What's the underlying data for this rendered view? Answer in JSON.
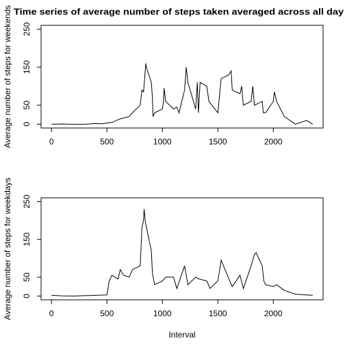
{
  "chart_data": [
    {
      "type": "line",
      "title": "Time series of average number of steps taken averaged across all day",
      "y_label": "Average number of steps for weekends",
      "x": [
        0,
        100,
        200,
        300,
        400,
        450,
        500,
        550,
        600,
        630,
        700,
        730,
        800,
        815,
        830,
        845,
        850,
        855,
        900,
        910,
        915,
        930,
        1000,
        1010,
        1015,
        1030,
        1100,
        1130,
        1150,
        1200,
        1210,
        1215,
        1230,
        1300,
        1315,
        1325,
        1340,
        1400,
        1420,
        1500,
        1510,
        1530,
        1600,
        1620,
        1630,
        1700,
        1715,
        1730,
        1800,
        1815,
        1830,
        1900,
        1910,
        1930,
        2000,
        2010,
        2030,
        2100,
        2150,
        2200,
        2300,
        2330,
        2355
      ],
      "series": [
        {
          "color": "#000000",
          "values": [
            0,
            0.5,
            0,
            0,
            2,
            1,
            3,
            5,
            12,
            15,
            20,
            30,
            50,
            90,
            85,
            140,
            160,
            150,
            110,
            70,
            20,
            30,
            40,
            60,
            95,
            60,
            40,
            45,
            30,
            90,
            130,
            150,
            110,
            40,
            110,
            30,
            110,
            100,
            60,
            30,
            60,
            120,
            130,
            140,
            90,
            80,
            100,
            50,
            60,
            100,
            50,
            60,
            30,
            30,
            60,
            85,
            60,
            20,
            10,
            0,
            10,
            5,
            0
          ]
        }
      ],
      "xlim": [
        -94.2,
        2449.2
      ],
      "ylim": [
        -10,
        260
      ],
      "xticks": [
        0,
        500,
        1000,
        1500,
        2000
      ],
      "yticks": [
        0,
        50,
        150,
        250
      ]
    },
    {
      "type": "line",
      "y_label": "Average number of steps for weekdays",
      "x_label": "Interval",
      "x": [
        0,
        100,
        200,
        300,
        400,
        500,
        520,
        545,
        600,
        620,
        650,
        700,
        730,
        800,
        815,
        830,
        835,
        845,
        850,
        900,
        910,
        930,
        1000,
        1030,
        1100,
        1130,
        1200,
        1230,
        1300,
        1330,
        1400,
        1430,
        1500,
        1530,
        1600,
        1630,
        1700,
        1730,
        1800,
        1830,
        1845,
        1900,
        1915,
        1930,
        2000,
        2030,
        2100,
        2200,
        2300,
        2355
      ],
      "series": [
        {
          "color": "#000000",
          "values": [
            2,
            0.5,
            0,
            1,
            2,
            3,
            40,
            55,
            45,
            70,
            55,
            50,
            70,
            80,
            180,
            200,
            230,
            200,
            190,
            120,
            60,
            30,
            40,
            50,
            50,
            20,
            80,
            30,
            50,
            45,
            40,
            20,
            40,
            95,
            45,
            25,
            55,
            20,
            80,
            110,
            115,
            80,
            40,
            30,
            25,
            30,
            15,
            5,
            3,
            2
          ]
        }
      ],
      "xlim": [
        -94.2,
        2449.2
      ],
      "ylim": [
        -10,
        260
      ],
      "xticks": [
        0,
        500,
        1000,
        1500,
        2000
      ],
      "yticks": [
        0,
        50,
        150,
        250
      ]
    }
  ]
}
